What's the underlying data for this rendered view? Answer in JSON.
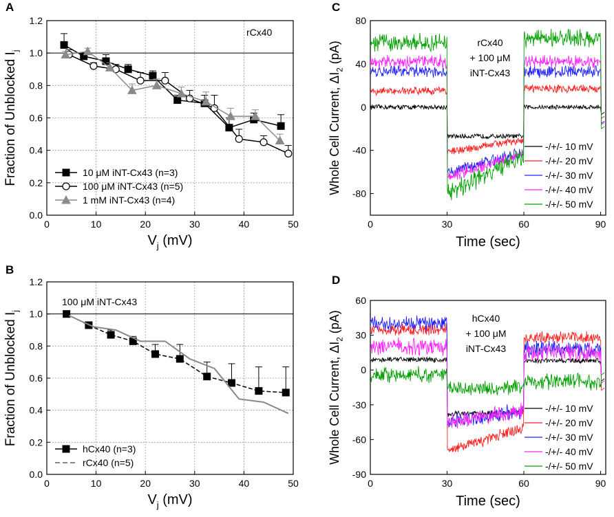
{
  "chart_data": [
    {
      "id": "A",
      "panel_label": "A",
      "type": "line",
      "annotation": "rCx40",
      "xlabel": "V",
      "xlabel_sub": "j",
      "xlabel_unit": " (mV)",
      "ylabel": "Fraction of Unblocked I",
      "ylabel_sub": "j",
      "xlim": [
        0,
        50
      ],
      "ylim": [
        0,
        1.2
      ],
      "xticks": [
        "0",
        "10",
        "20",
        "30",
        "40",
        "50"
      ],
      "yticks": [
        "0.0",
        "0.2",
        "0.4",
        "0.6",
        "0.8",
        "1.0",
        "1.2"
      ],
      "reference_line": 1.0,
      "series": [
        {
          "name": "10 μM iNT-Cx43 (n=3)",
          "color": "#000000",
          "marker": "square",
          "x": [
            3.5,
            7.5,
            12,
            16.5,
            21.5,
            26.5,
            32,
            37,
            42,
            47.5
          ],
          "y": [
            1.05,
            0.98,
            0.95,
            0.9,
            0.86,
            0.71,
            0.69,
            0.54,
            0.59,
            0.55
          ],
          "err": [
            0.07,
            0.02,
            0.04,
            0.03,
            0.03,
            0.03,
            0.05,
            0.06,
            0.04,
            0.07
          ]
        },
        {
          "name": "100 μM iNT-Cx43 (n=5)",
          "color": "#000000",
          "marker": "circle",
          "x": [
            4.5,
            9.5,
            14,
            19,
            24,
            29,
            34,
            39,
            44,
            49
          ],
          "y": [
            0.99,
            0.92,
            0.9,
            0.83,
            0.83,
            0.72,
            0.66,
            0.47,
            0.45,
            0.38
          ],
          "err": [
            0.03,
            0.02,
            0.03,
            0.05,
            0.05,
            0.05,
            0.08,
            0.06,
            0.04,
            0.05
          ]
        },
        {
          "name": "1 mM iNT-Cx43 (n=4)",
          "color": "#8a8a8a",
          "marker": "triangle",
          "x": [
            3.8,
            8.3,
            12.8,
            17.3,
            22.3,
            27.3,
            32.3,
            37.3,
            42.3,
            47.3
          ],
          "y": [
            0.99,
            1.01,
            0.91,
            0.77,
            0.8,
            0.75,
            0.7,
            0.61,
            0.61,
            0.46
          ],
          "err": [
            0.02,
            0.02,
            0.03,
            0.04,
            0.04,
            0.04,
            0.06,
            0.05,
            0.04,
            0.04
          ]
        }
      ]
    },
    {
      "id": "B",
      "panel_label": "B",
      "type": "line",
      "annotation": "100 μM iNT-Cx43",
      "xlabel": "V",
      "xlabel_sub": "j",
      "xlabel_unit": " (mV)",
      "ylabel": "Fraction of Unblocked I",
      "ylabel_sub": "j",
      "xlim": [
        0,
        50
      ],
      "ylim": [
        0,
        1.2
      ],
      "xticks": [
        "0",
        "10",
        "20",
        "30",
        "40",
        "50"
      ],
      "yticks": [
        "0.0",
        "0.2",
        "0.4",
        "0.6",
        "0.8",
        "1.0",
        "1.2"
      ],
      "reference_line": 1.0,
      "series": [
        {
          "name": "hCx40 (n=3)",
          "color": "#000000",
          "marker": "square",
          "dash": "6,3",
          "x": [
            4,
            8.5,
            13,
            17.5,
            22,
            27,
            32.5,
            37.5,
            43,
            48.5
          ],
          "y": [
            1.0,
            0.93,
            0.87,
            0.83,
            0.75,
            0.72,
            0.61,
            0.57,
            0.52,
            0.51
          ],
          "err": [
            0.02,
            0.02,
            0.03,
            0.03,
            0.06,
            0.09,
            0.09,
            0.12,
            0.15,
            0.16
          ]
        },
        {
          "name": "rCx40 (n=5)",
          "color": "#888888",
          "marker": "none",
          "dash": "",
          "x": [
            4.5,
            9.5,
            14,
            19,
            24,
            29,
            34,
            39,
            44,
            49
          ],
          "y": [
            0.99,
            0.92,
            0.9,
            0.83,
            0.83,
            0.72,
            0.66,
            0.47,
            0.45,
            0.38
          ],
          "err": []
        }
      ]
    },
    {
      "id": "C",
      "panel_label": "C",
      "type": "line",
      "annotation": [
        "rCx40",
        "+ 100 μM",
        "iNT-Cx43"
      ],
      "xlabel": "Time (sec)",
      "ylabel": "Whole Cell Current, ΔI",
      "ylabel_sub": "2",
      "ylabel_unit": " (pA)",
      "xlim": [
        0,
        92
      ],
      "ylim": [
        -100,
        80
      ],
      "xticks": [
        "0",
        "30",
        "60",
        "90"
      ],
      "yticks": [
        "-80",
        "-40",
        "0",
        "40",
        "80"
      ],
      "segment_times": [
        0,
        30,
        60,
        90
      ],
      "series": [
        {
          "name": "-/+/- 10 mV",
          "color": "#000000",
          "phase_levels": [
            0,
            -27,
            0
          ],
          "noise": 2,
          "drift": 0
        },
        {
          "name": "-/+/- 20 mV",
          "color": "#ff2020",
          "phase_levels": [
            15,
            -42,
            17
          ],
          "noise": 3,
          "drift": 12
        },
        {
          "name": "-/+/- 30 mV",
          "color": "#2020ff",
          "phase_levels": [
            33,
            -60,
            33
          ],
          "noise": 4,
          "drift": 18
        },
        {
          "name": "-/+/- 40 mV",
          "color": "#ff20ff",
          "phase_levels": [
            42,
            -65,
            42
          ],
          "noise": 4,
          "drift": 22
        },
        {
          "name": "-/+/- 50 mV",
          "color": "#00a000",
          "phase_levels": [
            60,
            -80,
            64
          ],
          "noise": 5,
          "drift": 35
        }
      ]
    },
    {
      "id": "D",
      "panel_label": "D",
      "type": "line",
      "annotation": [
        "hCx40",
        "+ 100 μM",
        "iNT-Cx43"
      ],
      "xlabel": "Time (sec)",
      "ylabel": "Whole Cell Current, ΔI",
      "ylabel_sub": "2",
      "ylabel_unit": " (pA)",
      "xlim": [
        0,
        92
      ],
      "ylim": [
        -90,
        60
      ],
      "xticks": [
        "0",
        "30",
        "60",
        "90"
      ],
      "yticks": [
        "-90",
        "-60",
        "-30",
        "0",
        "30",
        "60"
      ],
      "segment_times": [
        0,
        30,
        60,
        90
      ],
      "series": [
        {
          "name": "-/+/- 10 mV",
          "color": "#000000",
          "phase_levels": [
            9,
            -38,
            8
          ],
          "noise": 2,
          "drift": 2
        },
        {
          "name": "-/+/- 20 mV",
          "color": "#ff2020",
          "phase_levels": [
            35,
            -70,
            28
          ],
          "noise": 4,
          "drift": 20
        },
        {
          "name": "-/+/- 30 mV",
          "color": "#2020ff",
          "phase_levels": [
            40,
            -45,
            18
          ],
          "noise": 5,
          "drift": 10
        },
        {
          "name": "-/+/- 40 mV",
          "color": "#ff20ff",
          "phase_levels": [
            20,
            -45,
            15
          ],
          "noise": 5,
          "drift": 10
        },
        {
          "name": "-/+/- 50 mV",
          "color": "#00a000",
          "phase_levels": [
            -4,
            -17,
            -10
          ],
          "noise": 4,
          "drift": 2
        }
      ]
    }
  ]
}
